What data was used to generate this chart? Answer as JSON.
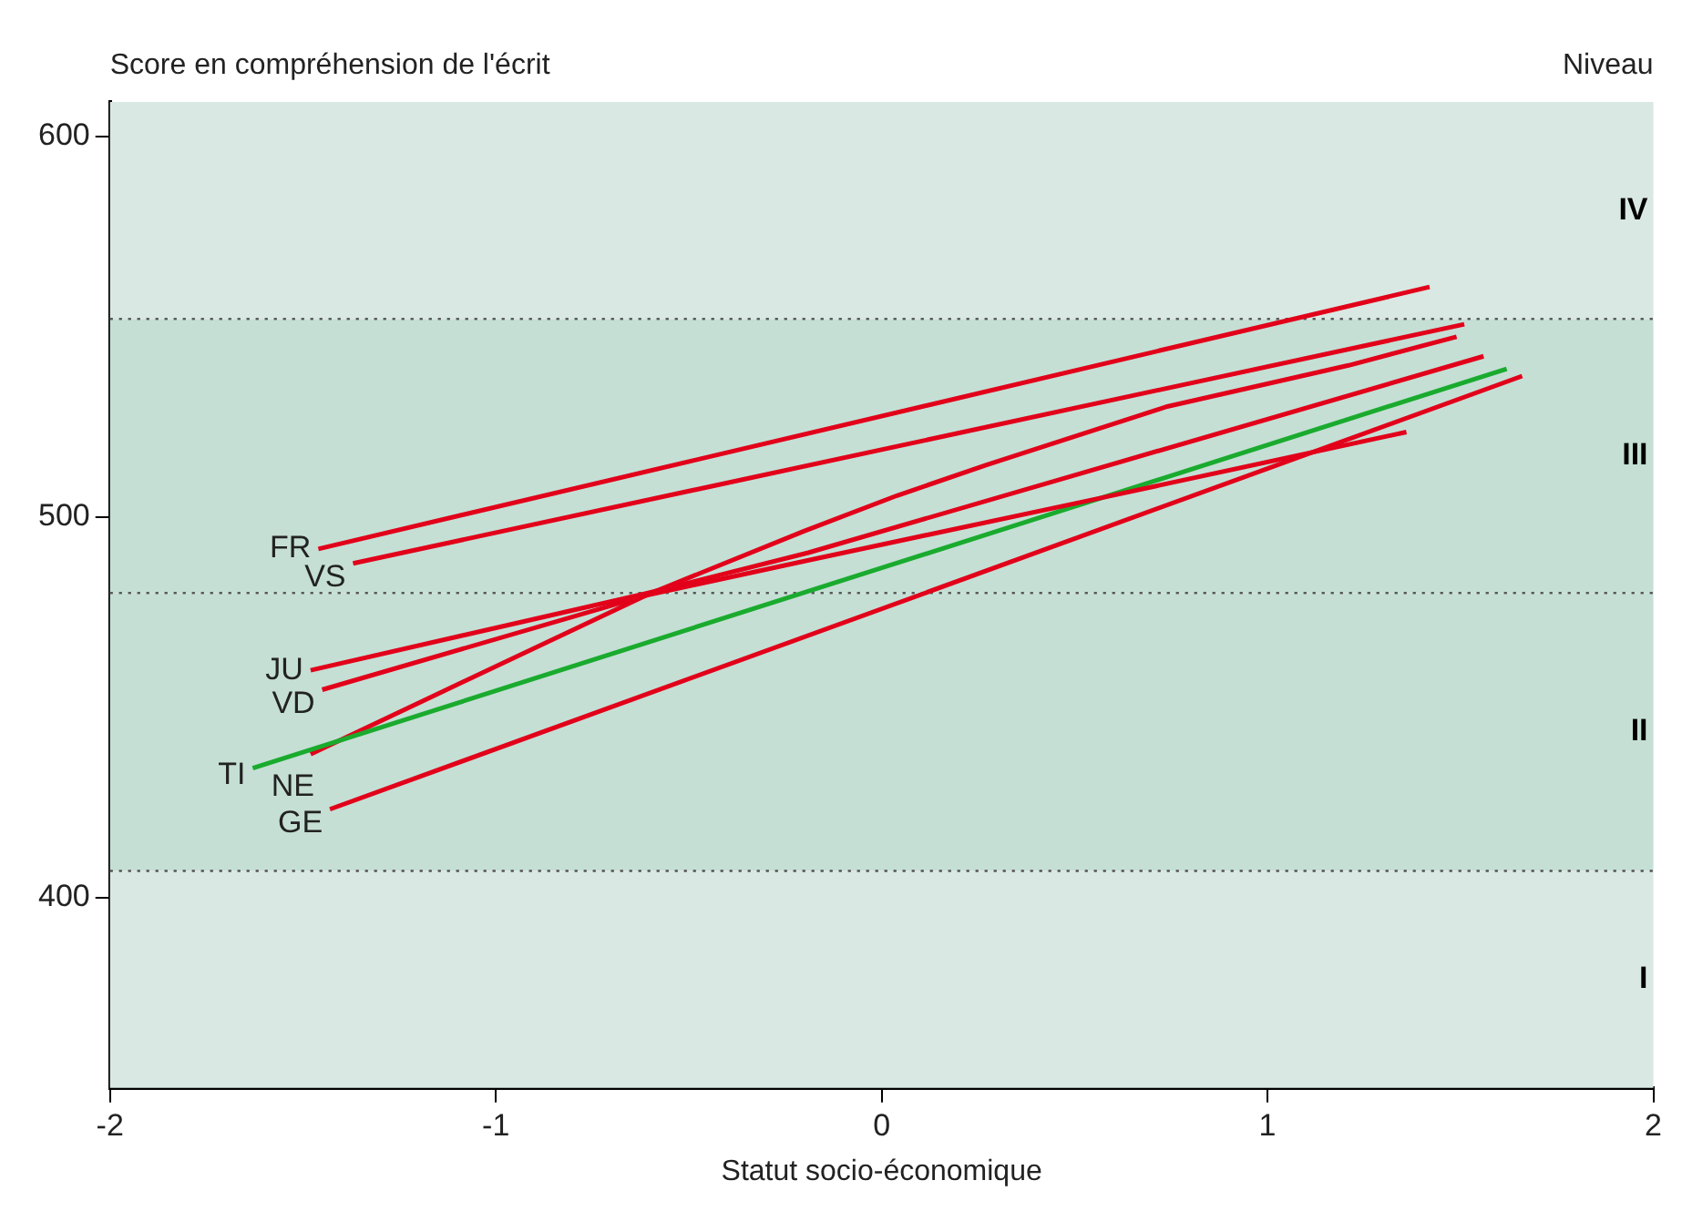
{
  "chart_data": {
    "type": "line",
    "xlabel": "Statut socio-économique",
    "ylabel": "Score en compréhension de l'écrit",
    "annotations": [
      "Niveau"
    ],
    "xlim": [
      -2,
      2
    ],
    "xticks": [
      -2,
      -1,
      0,
      1,
      2
    ],
    "ylim": [
      350,
      609
    ],
    "yticks": [
      400,
      500,
      600
    ],
    "grid": false,
    "legend": false,
    "marker": "none",
    "line_style": "solid",
    "bands": [
      {
        "axis": "y",
        "from": 350,
        "to": 407,
        "label": "I",
        "color": "#d9e8e3"
      },
      {
        "axis": "y",
        "from": 407,
        "to": 480,
        "label": "II",
        "color": "#c5dfd5"
      },
      {
        "axis": "y",
        "from": 480,
        "to": 552,
        "label": "III",
        "color": "#c5dfd5"
      },
      {
        "axis": "y",
        "from": 552,
        "to": 609,
        "label": "IV",
        "color": "#d9e8e3"
      }
    ],
    "series": [
      {
        "name": "FR",
        "color": "#e2001a",
        "x": [
          -1.46,
          1.42
        ],
        "values": [
          491.6,
          560.4
        ]
      },
      {
        "name": "VS",
        "color": "#e2001a",
        "x": [
          -1.37,
          1.51
        ],
        "values": [
          487.8,
          550.6
        ]
      },
      {
        "name": "JU",
        "color": "#e2001a",
        "x": [
          -1.48,
          -0.61,
          -0.19,
          1.56
        ],
        "values": [
          459.7,
          479.9,
          490.6,
          542.2
        ]
      },
      {
        "name": "VD",
        "color": "#e2001a",
        "x": [
          -1.45,
          -0.61,
          -0.2,
          0.56,
          1.36
        ],
        "values": [
          454.6,
          479.4,
          488.4,
          504.8,
          522.3
        ]
      },
      {
        "name": "TI",
        "color": "#1aab2e",
        "x": [
          -1.63,
          1.62
        ],
        "values": [
          434,
          538.9
        ]
      },
      {
        "name": "NE",
        "color": "#e2001a",
        "x": [
          -1.48,
          -0.6,
          -0.2,
          0.04,
          0.27,
          0.74,
          1.21,
          1.49
        ],
        "values": [
          437.7,
          479.9,
          496.3,
          505.6,
          513.6,
          529,
          539.8,
          547.3
        ]
      },
      {
        "name": "GE",
        "color": "#e2001a",
        "x": [
          -1.43,
          1.66
        ],
        "values": [
          423.2,
          537
        ]
      }
    ]
  }
}
